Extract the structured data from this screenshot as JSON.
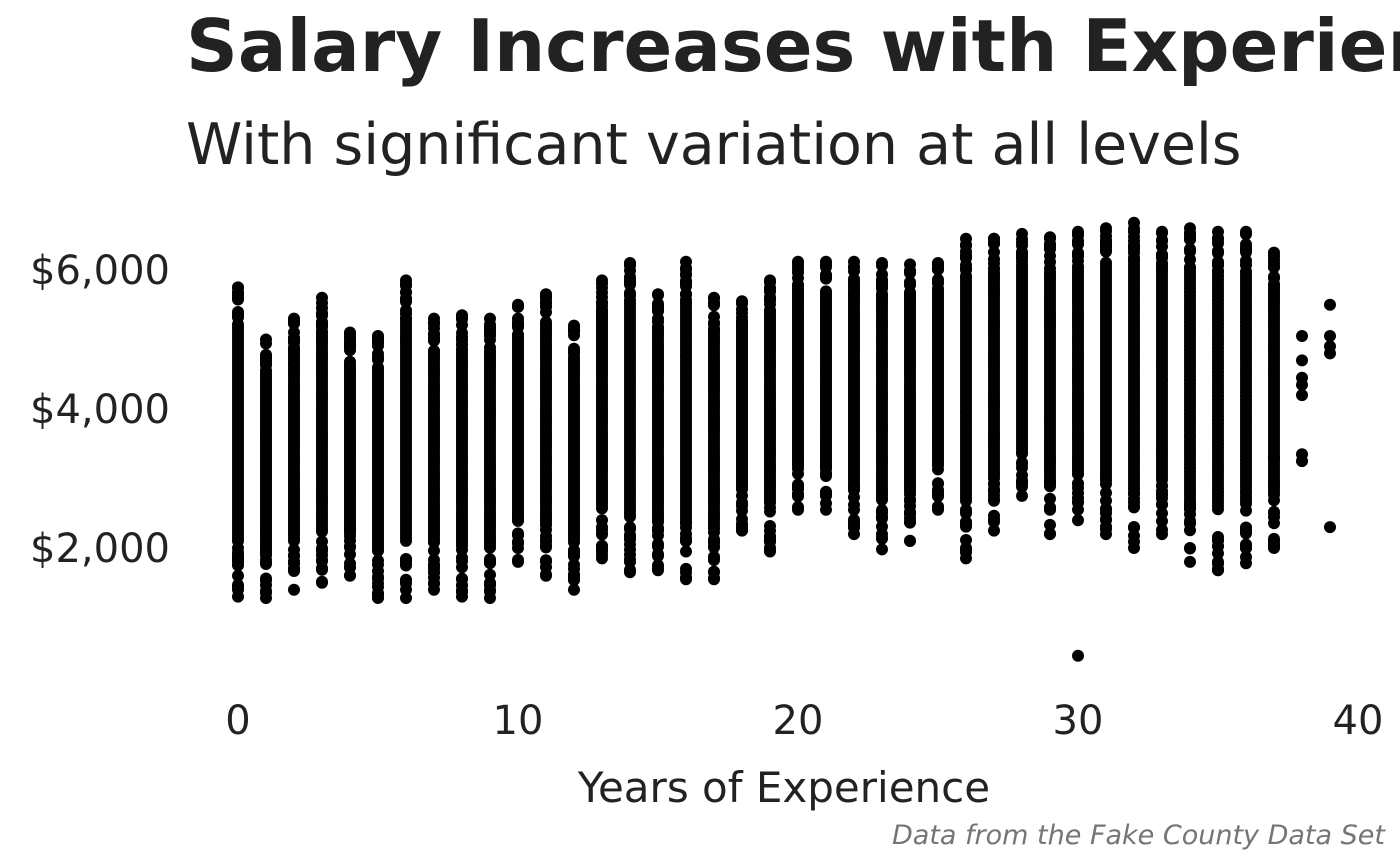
{
  "chart_data": {
    "type": "scatter",
    "title": "Salary Increases with Experience",
    "subtitle": "With significant variation at all levels",
    "xlabel": "Years of Experience",
    "ylabel": "",
    "caption": "Data from the Fake County Data Set",
    "xlim": [
      -1.2,
      40
    ],
    "ylim": [
      200,
      6700
    ],
    "x_ticks": [
      0,
      10,
      20,
      30,
      40
    ],
    "x_tick_labels": [
      "0",
      "10",
      "20",
      "30",
      "40"
    ],
    "y_ticks": [
      2000,
      4000,
      6000
    ],
    "y_tick_labels": [
      "$2,000",
      "$4,000",
      "$6,000"
    ],
    "grid": false,
    "legend": "none",
    "point_color": "#000000",
    "series": [
      {
        "points_by_year": [
          {
            "x": 0,
            "min": 1300,
            "max": 5750,
            "outliers": [
              1300,
              1400,
              1600,
              1750,
              5600,
              5750
            ]
          },
          {
            "x": 1,
            "min": 1280,
            "max": 5000,
            "outliers": [
              1280,
              4750,
              5000
            ]
          },
          {
            "x": 2,
            "min": 1400,
            "max": 5300,
            "outliers": [
              1400,
              4650,
              5100,
              5300
            ]
          },
          {
            "x": 3,
            "min": 1500,
            "max": 5600,
            "outliers": [
              1500,
              5000,
              5200,
              5600
            ]
          },
          {
            "x": 4,
            "min": 1600,
            "max": 5100,
            "outliers": [
              1600,
              2300,
              5100
            ]
          },
          {
            "x": 5,
            "min": 1280,
            "max": 5050,
            "outliers": [
              1280,
              1350,
              5050
            ]
          },
          {
            "x": 6,
            "min": 1280,
            "max": 5850,
            "outliers": [
              1280,
              1400,
              5050,
              5850
            ]
          },
          {
            "x": 7,
            "min": 1400,
            "max": 5300,
            "outliers": [
              1400,
              1700,
              5300
            ]
          },
          {
            "x": 8,
            "min": 1300,
            "max": 5350,
            "outliers": [
              1300,
              1550,
              5300,
              5350
            ]
          },
          {
            "x": 9,
            "min": 1280,
            "max": 5300,
            "outliers": [
              1280,
              1400,
              5300
            ]
          },
          {
            "x": 10,
            "min": 1800,
            "max": 5500,
            "outliers": [
              1800,
              2000,
              5300,
              5500
            ]
          },
          {
            "x": 11,
            "min": 1600,
            "max": 5650,
            "outliers": [
              1600,
              1800,
              5250,
              5650
            ]
          },
          {
            "x": 12,
            "min": 1400,
            "max": 5200,
            "outliers": [
              1400,
              1600,
              1700,
              5200
            ]
          },
          {
            "x": 13,
            "min": 1850,
            "max": 5850,
            "outliers": [
              1850,
              1950,
              5300,
              5850
            ]
          },
          {
            "x": 14,
            "min": 1650,
            "max": 6100,
            "outliers": [
              1650,
              1800,
              2050,
              5650,
              5850,
              6100
            ]
          },
          {
            "x": 15,
            "min": 1680,
            "max": 5650,
            "outliers": [
              1680,
              2250,
              5650
            ]
          },
          {
            "x": 16,
            "min": 1550,
            "max": 6120,
            "outliers": [
              1550,
              1700,
              1950,
              6120
            ]
          },
          {
            "x": 17,
            "min": 1550,
            "max": 5600,
            "outliers": [
              1550,
              1650,
              1850,
              2100,
              5600
            ]
          },
          {
            "x": 18,
            "min": 2250,
            "max": 5550,
            "outliers": [
              2250,
              2350,
              5550
            ]
          },
          {
            "x": 19,
            "min": 1950,
            "max": 5850,
            "outliers": [
              1950,
              2150,
              5850
            ]
          },
          {
            "x": 20,
            "min": 2550,
            "max": 6120,
            "outliers": [
              2550,
              2850,
              6120
            ]
          },
          {
            "x": 21,
            "min": 2550,
            "max": 6120,
            "outliers": [
              2550,
              6120
            ]
          },
          {
            "x": 22,
            "min": 2200,
            "max": 6120,
            "outliers": [
              2200,
              2350,
              2550,
              6120
            ]
          },
          {
            "x": 23,
            "min": 1980,
            "max": 6100,
            "outliers": [
              1980,
              2200,
              2450,
              6100
            ]
          },
          {
            "x": 24,
            "min": 2100,
            "max": 6080,
            "outliers": [
              2100,
              2600,
              6080
            ]
          },
          {
            "x": 25,
            "min": 2550,
            "max": 6100,
            "outliers": [
              2550,
              2750,
              6100
            ]
          },
          {
            "x": 26,
            "min": 1850,
            "max": 6450,
            "outliers": [
              1850,
              2500,
              6200,
              6450
            ]
          },
          {
            "x": 27,
            "min": 2250,
            "max": 6450,
            "outliers": [
              2250,
              2700,
              6450
            ]
          },
          {
            "x": 28,
            "min": 2750,
            "max": 6520,
            "outliers": [
              2750,
              2950,
              6520
            ]
          },
          {
            "x": 29,
            "min": 2200,
            "max": 6470,
            "outliers": [
              2200,
              2550,
              6470
            ]
          },
          {
            "x": 30,
            "min": 450,
            "max": 6550,
            "outliers": [
              450,
              2400,
              2650,
              6550
            ]
          },
          {
            "x": 31,
            "min": 2200,
            "max": 6600,
            "outliers": [
              2200,
              2500,
              6600
            ]
          },
          {
            "x": 32,
            "min": 2000,
            "max": 6680,
            "outliers": [
              2000,
              2600,
              6680
            ]
          },
          {
            "x": 33,
            "min": 2200,
            "max": 6550,
            "outliers": [
              2200,
              2500,
              6550
            ]
          },
          {
            "x": 34,
            "min": 1800,
            "max": 6600,
            "outliers": [
              1800,
              2000,
              6600
            ]
          },
          {
            "x": 35,
            "min": 1680,
            "max": 6550,
            "outliers": [
              1680,
              1800,
              6550
            ]
          },
          {
            "x": 36,
            "min": 1780,
            "max": 6550,
            "outliers": [
              1780,
              2000,
              6550
            ]
          },
          {
            "x": 37,
            "min": 2000,
            "max": 6250,
            "outliers": [
              2000,
              2100,
              2500,
              2900,
              3300,
              6250
            ]
          },
          {
            "x": 38,
            "values": [
              3250,
              3350,
              4200,
              4350,
              4450,
              4700,
              5050
            ]
          },
          {
            "x": 39,
            "values": [
              2300,
              4800,
              4900,
              5050,
              5500
            ]
          }
        ]
      }
    ]
  }
}
